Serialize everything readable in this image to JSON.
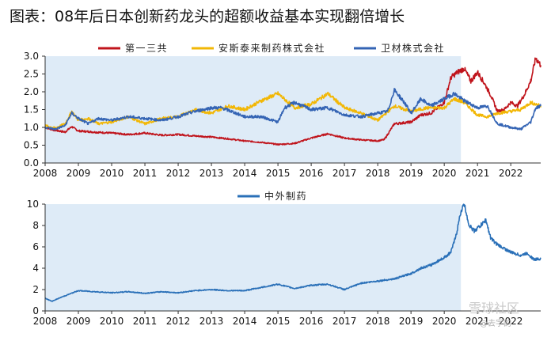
{
  "title": "图表：08年后日本创新药龙头的超额收益基本实现翻倍增长",
  "watermark": {
    "main": "雪球社区",
    "sub": "@去字韵"
  },
  "chart_data": [
    {
      "type": "line",
      "title": "",
      "xlabel": "",
      "ylabel": "",
      "x_ticks": [
        "2008",
        "2009",
        "2010",
        "2011",
        "2012",
        "2013",
        "2014",
        "2015",
        "2016",
        "2017",
        "2018",
        "2019",
        "2020",
        "2021",
        "2022"
      ],
      "y_ticks": [
        "0.0",
        "0.5",
        "1.0",
        "1.5",
        "2.0",
        "2.5",
        "3.0"
      ],
      "xlim": [
        2008,
        2022.9
      ],
      "ylim": [
        0,
        3
      ],
      "legend_position": "top",
      "shaded_range": [
        2008,
        2020.5
      ],
      "grid": false,
      "series": [
        {
          "name": "第一三共",
          "color": "#c0141c",
          "x": [
            2008,
            2008.3,
            2008.6,
            2008.8,
            2009,
            2009.3,
            2009.6,
            2010,
            2010.5,
            2011,
            2011.5,
            2012,
            2012.5,
            2013,
            2013.5,
            2014,
            2014.5,
            2015,
            2015.5,
            2016,
            2016.5,
            2017,
            2017.5,
            2018,
            2018.2,
            2018.5,
            2019,
            2019.3,
            2019.6,
            2020,
            2020.2,
            2020.4,
            2020.6,
            2020.8,
            2021,
            2021.2,
            2021.4,
            2021.6,
            2021.8,
            2022,
            2022.2,
            2022.4,
            2022.6,
            2022.75,
            2022.9
          ],
          "y": [
            1.0,
            0.92,
            0.87,
            1.02,
            0.9,
            0.88,
            0.86,
            0.84,
            0.8,
            0.84,
            0.78,
            0.8,
            0.76,
            0.73,
            0.68,
            0.62,
            0.58,
            0.52,
            0.55,
            0.7,
            0.82,
            0.7,
            0.65,
            0.62,
            0.66,
            1.1,
            1.15,
            1.35,
            1.4,
            1.7,
            2.4,
            2.55,
            2.65,
            2.3,
            2.55,
            2.25,
            1.9,
            1.45,
            1.5,
            1.7,
            1.6,
            1.9,
            2.3,
            2.95,
            2.75
          ]
        },
        {
          "name": "安斯泰来制药株式会社",
          "color": "#f2b705",
          "x": [
            2008,
            2008.3,
            2008.6,
            2008.8,
            2009,
            2009.3,
            2009.6,
            2010,
            2010.5,
            2011,
            2011.5,
            2012,
            2012.5,
            2013,
            2013.5,
            2014,
            2014.5,
            2015,
            2015.5,
            2016,
            2016.5,
            2017,
            2017.5,
            2018,
            2018.5,
            2019,
            2019.5,
            2020,
            2020.3,
            2020.6,
            2021,
            2021.3,
            2021.6,
            2022,
            2022.3,
            2022.6,
            2022.9
          ],
          "y": [
            1.05,
            0.98,
            1.1,
            1.45,
            1.2,
            1.25,
            1.1,
            1.15,
            1.3,
            1.1,
            1.25,
            1.3,
            1.5,
            1.4,
            1.6,
            1.5,
            1.75,
            1.95,
            1.55,
            1.65,
            1.95,
            1.55,
            1.4,
            1.2,
            1.6,
            1.45,
            1.55,
            1.55,
            1.8,
            1.7,
            1.35,
            1.3,
            1.4,
            1.45,
            1.5,
            1.7,
            1.6
          ]
        },
        {
          "name": "卫材株式会社",
          "color": "#3464b4",
          "x": [
            2008,
            2008.3,
            2008.6,
            2008.8,
            2009,
            2009.3,
            2009.6,
            2010,
            2010.5,
            2011,
            2011.5,
            2012,
            2012.5,
            2013,
            2013.3,
            2013.6,
            2014,
            2014.5,
            2015,
            2015.2,
            2015.5,
            2016,
            2016.5,
            2017,
            2017.5,
            2018,
            2018.3,
            2018.5,
            2018.8,
            2019,
            2019.3,
            2019.6,
            2020,
            2020.3,
            2020.6,
            2021,
            2021.3,
            2021.6,
            2022,
            2022.3,
            2022.6,
            2022.75,
            2022.9
          ],
          "y": [
            1.0,
            0.95,
            1.05,
            1.4,
            1.25,
            1.1,
            1.25,
            1.2,
            1.3,
            1.25,
            1.2,
            1.3,
            1.45,
            1.55,
            1.55,
            1.45,
            1.3,
            1.3,
            1.15,
            1.55,
            1.7,
            1.5,
            1.55,
            1.35,
            1.3,
            1.4,
            1.45,
            2.05,
            1.7,
            1.4,
            1.8,
            1.6,
            1.8,
            1.95,
            1.75,
            1.55,
            1.6,
            1.1,
            1.0,
            0.95,
            1.15,
            1.55,
            1.6
          ]
        }
      ]
    },
    {
      "type": "line",
      "title": "",
      "xlabel": "",
      "ylabel": "",
      "x_ticks": [
        "2008",
        "2009",
        "2010",
        "2011",
        "2012",
        "2013",
        "2014",
        "2015",
        "2016",
        "2017",
        "2018",
        "2019",
        "2020",
        "2021",
        "2022"
      ],
      "y_ticks": [
        "0",
        "2",
        "4",
        "6",
        "8",
        "10"
      ],
      "xlim": [
        2008,
        2022.9
      ],
      "ylim": [
        0,
        10
      ],
      "legend_position": "top",
      "shaded_range": [
        2008,
        2020.5
      ],
      "grid": false,
      "series": [
        {
          "name": "中外制药",
          "color": "#2a70b8",
          "x": [
            2008,
            2008.2,
            2008.5,
            2009,
            2009.5,
            2010,
            2010.5,
            2011,
            2011.5,
            2012,
            2012.5,
            2013,
            2013.5,
            2014,
            2014.5,
            2015,
            2015.5,
            2016,
            2016.5,
            2017,
            2017.5,
            2018,
            2018.5,
            2019,
            2019.3,
            2019.6,
            2020,
            2020.2,
            2020.35,
            2020.5,
            2020.6,
            2020.75,
            2020.9,
            2021.1,
            2021.25,
            2021.4,
            2021.6,
            2022,
            2022.3,
            2022.5,
            2022.7,
            2022.9
          ],
          "y": [
            1.2,
            0.9,
            1.3,
            1.9,
            1.8,
            1.7,
            1.8,
            1.65,
            1.8,
            1.7,
            1.9,
            2.0,
            1.9,
            1.9,
            2.2,
            2.5,
            2.1,
            2.4,
            2.5,
            2.0,
            2.6,
            2.8,
            3.0,
            3.5,
            4.0,
            4.3,
            5.0,
            5.5,
            7.0,
            9.3,
            10.0,
            8.0,
            7.5,
            8.0,
            8.5,
            6.8,
            6.2,
            5.5,
            5.2,
            5.4,
            4.8,
            4.9
          ]
        }
      ]
    }
  ]
}
